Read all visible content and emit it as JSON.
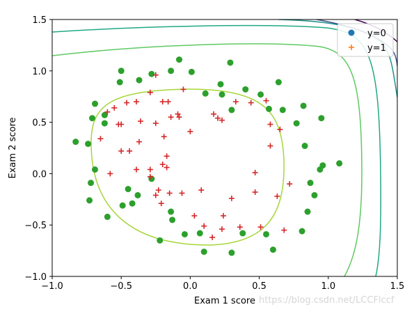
{
  "chart_data": {
    "type": "scatter",
    "title": "",
    "xlabel": "Exam 1 score",
    "ylabel": "Exam 2 score",
    "xlim": [
      -1.0,
      1.5
    ],
    "ylim": [
      -1.0,
      1.5
    ],
    "xticks": [
      "−1.0",
      "−0.5",
      "0.0",
      "0.5",
      "1.0",
      "1.5"
    ],
    "yticks": [
      "−1.0",
      "−0.5",
      "0.0",
      "0.5",
      "1.0",
      "1.5"
    ],
    "xtick_values": [
      -1.0,
      -0.5,
      0.0,
      0.5,
      1.0,
      1.5
    ],
    "ytick_values": [
      -1.0,
      -0.5,
      0.0,
      0.5,
      1.0,
      1.5
    ],
    "legend_position": "top-right",
    "grid": false,
    "series": [
      {
        "name": "y=0",
        "marker": "circle",
        "legend_color": "#1f77b4",
        "color": "#2ca02c",
        "points": [
          [
            -0.83,
            0.31
          ],
          [
            -0.74,
            0.29
          ],
          [
            -0.69,
            0.68
          ],
          [
            -0.71,
            0.54
          ],
          [
            -0.62,
            0.57
          ],
          [
            -0.62,
            0.49
          ],
          [
            -0.5,
            1.0
          ],
          [
            -0.51,
            0.89
          ],
          [
            -0.37,
            0.91
          ],
          [
            -0.28,
            0.97
          ],
          [
            -0.08,
            1.11
          ],
          [
            -0.14,
            1.0
          ],
          [
            0.01,
            0.99
          ],
          [
            0.29,
            1.08
          ],
          [
            0.22,
            0.87
          ],
          [
            0.11,
            0.78
          ],
          [
            0.23,
            0.77
          ],
          [
            0.3,
            0.62
          ],
          [
            0.4,
            0.82
          ],
          [
            0.51,
            0.77
          ],
          [
            0.57,
            0.63
          ],
          [
            0.64,
            0.89
          ],
          [
            0.67,
            0.62
          ],
          [
            0.77,
            0.49
          ],
          [
            0.82,
            0.66
          ],
          [
            0.95,
            0.54
          ],
          [
            0.83,
            0.27
          ],
          [
            0.96,
            0.08
          ],
          [
            0.94,
            0.04
          ],
          [
            1.08,
            0.1
          ],
          [
            0.87,
            -0.09
          ],
          [
            0.9,
            -0.21
          ],
          [
            0.85,
            -0.37
          ],
          [
            0.81,
            -0.56
          ],
          [
            0.55,
            -0.59
          ],
          [
            0.6,
            -0.74
          ],
          [
            0.38,
            -0.58
          ],
          [
            0.3,
            -0.77
          ],
          [
            0.1,
            -0.76
          ],
          [
            0.07,
            -0.58
          ],
          [
            -0.04,
            -0.59
          ],
          [
            -0.13,
            -0.45
          ],
          [
            -0.22,
            -0.65
          ],
          [
            -0.6,
            -0.42
          ],
          [
            -0.49,
            -0.31
          ],
          [
            -0.42,
            -0.29
          ],
          [
            -0.38,
            -0.21
          ],
          [
            -0.45,
            -0.15
          ],
          [
            -0.73,
            -0.26
          ],
          [
            -0.72,
            -0.09
          ],
          [
            -0.69,
            0.04
          ],
          [
            -0.28,
            -0.05
          ],
          [
            -0.14,
            -0.37
          ]
        ]
      },
      {
        "name": "y=1",
        "marker": "plus",
        "legend_color": "#ff7f0e",
        "color": "#d62728",
        "points": [
          [
            -0.25,
            0.96
          ],
          [
            -0.29,
            0.79
          ],
          [
            -0.2,
            0.7
          ],
          [
            -0.16,
            0.7
          ],
          [
            -0.05,
            0.82
          ],
          [
            -0.46,
            0.69
          ],
          [
            -0.39,
            0.7
          ],
          [
            -0.55,
            0.64
          ],
          [
            -0.6,
            0.6
          ],
          [
            -0.52,
            0.48
          ],
          [
            -0.5,
            0.48
          ],
          [
            -0.36,
            0.51
          ],
          [
            -0.25,
            0.49
          ],
          [
            -0.14,
            0.55
          ],
          [
            -0.09,
            0.58
          ],
          [
            -0.19,
            0.36
          ],
          [
            -0.37,
            0.31
          ],
          [
            -0.5,
            0.22
          ],
          [
            -0.44,
            0.22
          ],
          [
            -0.65,
            0.34
          ],
          [
            -0.58,
            0.0
          ],
          [
            -0.39,
            0.04
          ],
          [
            -0.29,
            0.04
          ],
          [
            -0.17,
            0.06
          ],
          [
            -0.17,
            0.17
          ],
          [
            -0.2,
            0.09
          ],
          [
            -0.08,
            0.55
          ],
          [
            0.0,
            0.41
          ],
          [
            -0.29,
            -0.03
          ],
          [
            -0.23,
            -0.16
          ],
          [
            -0.15,
            -0.19
          ],
          [
            -0.06,
            -0.19
          ],
          [
            0.08,
            -0.16
          ],
          [
            -0.25,
            -0.21
          ],
          [
            -0.21,
            -0.29
          ],
          [
            0.03,
            -0.41
          ],
          [
            0.1,
            -0.51
          ],
          [
            0.24,
            -0.41
          ],
          [
            0.16,
            -0.62
          ],
          [
            0.23,
            -0.54
          ],
          [
            0.3,
            -0.24
          ],
          [
            0.36,
            -0.52
          ],
          [
            0.47,
            -0.18
          ],
          [
            0.51,
            -0.52
          ],
          [
            0.63,
            -0.22
          ],
          [
            0.68,
            -0.55
          ],
          [
            0.72,
            -0.1
          ],
          [
            0.47,
            0.01
          ],
          [
            0.58,
            0.27
          ],
          [
            0.58,
            0.48
          ],
          [
            0.65,
            0.43
          ],
          [
            0.55,
            0.71
          ],
          [
            0.44,
            0.69
          ],
          [
            0.33,
            0.7
          ],
          [
            0.23,
            0.52
          ],
          [
            0.17,
            0.58
          ],
          [
            0.2,
            0.54
          ]
        ]
      }
    ],
    "decision_boundary_contours": [
      {
        "level": "inner",
        "color": "#a6d63a"
      },
      {
        "level": "mid-1",
        "color": "#5ec962"
      },
      {
        "level": "mid-2",
        "color": "#21a884"
      },
      {
        "level": "mid-3",
        "color": "#1f918d"
      },
      {
        "level": "outer",
        "color": "#3b528b"
      },
      {
        "level": "outermost",
        "color": "#440154"
      }
    ]
  },
  "watermark": "https://blog.csdn.net/LCCFlccf"
}
